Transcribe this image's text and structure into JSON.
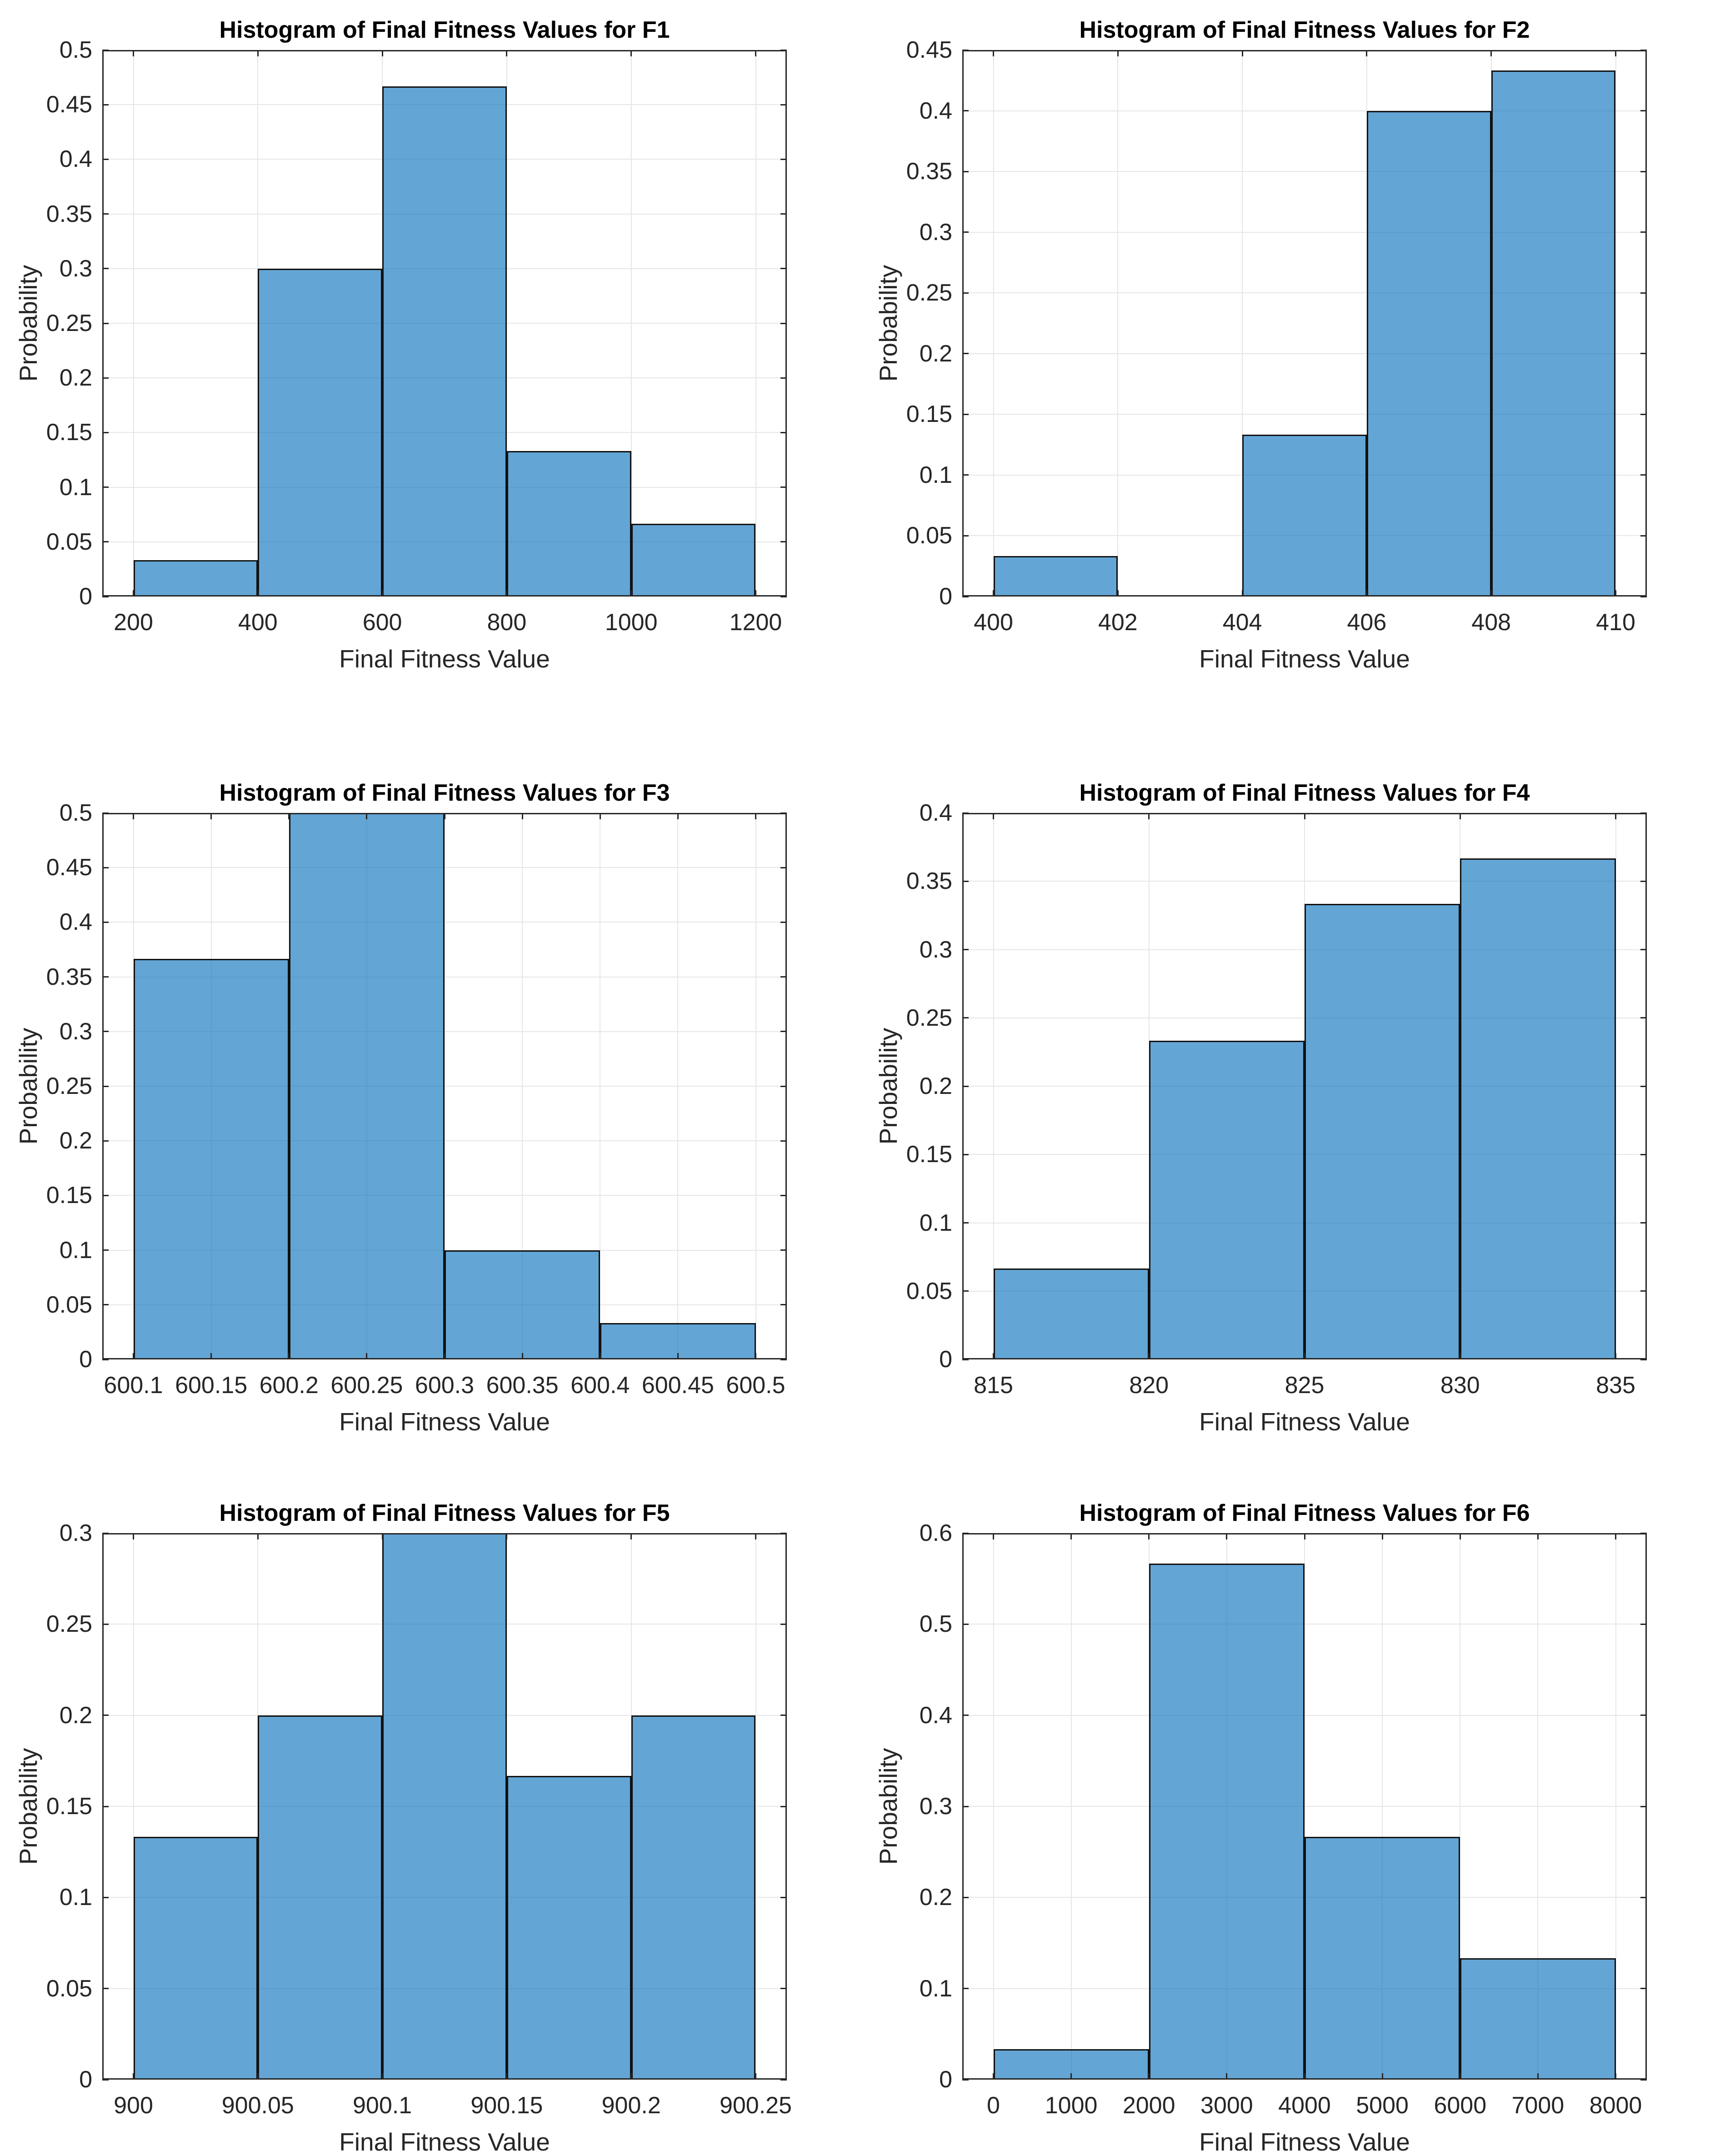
{
  "figure": {
    "background": "#ffffff"
  },
  "colors": {
    "bar_fill_rgba": "rgba(8,112,188,0.63)",
    "bar_edge": "#111111",
    "axis": "#262626",
    "grid": "#e6e6e6",
    "tick_text": "#262626",
    "title_text": "#000000"
  },
  "chart_data": [
    {
      "id": "F1",
      "type": "bar",
      "title": "Histogram of Final Fitness Values for F1",
      "xlabel": "Final Fitness Value",
      "ylabel": "Probability",
      "xlim": [
        150,
        1250
      ],
      "ylim": [
        0,
        0.5
      ],
      "grid": true,
      "x_ticks": [
        200,
        400,
        600,
        800,
        1000,
        1200
      ],
      "x_tick_labels": [
        "200",
        "400",
        "600",
        "800",
        "1000",
        "1200"
      ],
      "y_ticks": [
        0,
        0.05,
        0.1,
        0.15,
        0.2,
        0.25,
        0.3,
        0.35,
        0.4,
        0.45,
        0.5
      ],
      "y_tick_labels": [
        "0",
        "0.05",
        "0.1",
        "0.15",
        "0.2",
        "0.25",
        "0.3",
        "0.35",
        "0.4",
        "0.45",
        "0.5"
      ],
      "bins": [
        {
          "x0": 200,
          "x1": 400,
          "p": 0.0333
        },
        {
          "x0": 400,
          "x1": 600,
          "p": 0.3
        },
        {
          "x0": 600,
          "x1": 800,
          "p": 0.4667
        },
        {
          "x0": 800,
          "x1": 1000,
          "p": 0.1333
        },
        {
          "x0": 1000,
          "x1": 1200,
          "p": 0.0667
        }
      ]
    },
    {
      "id": "F2",
      "type": "bar",
      "title": "Histogram of Final Fitness Values for F2",
      "xlabel": "Final Fitness Value",
      "ylabel": "Probability",
      "xlim": [
        399.5,
        410.5
      ],
      "ylim": [
        0,
        0.45
      ],
      "grid": true,
      "x_ticks": [
        400,
        402,
        404,
        406,
        408,
        410
      ],
      "x_tick_labels": [
        "400",
        "402",
        "404",
        "406",
        "408",
        "410"
      ],
      "y_ticks": [
        0,
        0.05,
        0.1,
        0.15,
        0.2,
        0.25,
        0.3,
        0.35,
        0.4,
        0.45
      ],
      "y_tick_labels": [
        "0",
        "0.05",
        "0.1",
        "0.15",
        "0.2",
        "0.25",
        "0.3",
        "0.35",
        "0.4",
        "0.45"
      ],
      "bins": [
        {
          "x0": 400,
          "x1": 402,
          "p": 0.0333
        },
        {
          "x0": 402,
          "x1": 404,
          "p": 0
        },
        {
          "x0": 404,
          "x1": 406,
          "p": 0.1333
        },
        {
          "x0": 406,
          "x1": 408,
          "p": 0.4
        },
        {
          "x0": 408,
          "x1": 410,
          "p": 0.4333
        }
      ]
    },
    {
      "id": "F3",
      "type": "bar",
      "title": "Histogram of Final Fitness Values for F3",
      "xlabel": "Final Fitness Value",
      "ylabel": "Probability",
      "xlim": [
        600.08,
        600.52
      ],
      "ylim": [
        0,
        0.5
      ],
      "grid": true,
      "x_ticks": [
        600.1,
        600.15,
        600.2,
        600.25,
        600.3,
        600.35,
        600.4,
        600.45,
        600.5
      ],
      "x_tick_labels": [
        "600.1",
        "600.15",
        "600.2",
        "600.25",
        "600.3",
        "600.35",
        "600.4",
        "600.45",
        "600.5"
      ],
      "y_ticks": [
        0,
        0.05,
        0.1,
        0.15,
        0.2,
        0.25,
        0.3,
        0.35,
        0.4,
        0.45,
        0.5
      ],
      "y_tick_labels": [
        "0",
        "0.05",
        "0.1",
        "0.15",
        "0.2",
        "0.25",
        "0.3",
        "0.35",
        "0.4",
        "0.45",
        "0.5"
      ],
      "bins": [
        {
          "x0": 600.1,
          "x1": 600.2,
          "p": 0.3667
        },
        {
          "x0": 600.2,
          "x1": 600.3,
          "p": 0.5
        },
        {
          "x0": 600.3,
          "x1": 600.4,
          "p": 0.1
        },
        {
          "x0": 600.4,
          "x1": 600.5,
          "p": 0.0333
        }
      ]
    },
    {
      "id": "F4",
      "type": "bar",
      "title": "Histogram of Final Fitness Values for F4",
      "xlabel": "Final Fitness Value",
      "ylabel": "Probability",
      "xlim": [
        814,
        836
      ],
      "ylim": [
        0,
        0.4
      ],
      "grid": true,
      "x_ticks": [
        815,
        820,
        825,
        830,
        835
      ],
      "x_tick_labels": [
        "815",
        "820",
        "825",
        "830",
        "835"
      ],
      "y_ticks": [
        0,
        0.05,
        0.1,
        0.15,
        0.2,
        0.25,
        0.3,
        0.35,
        0.4
      ],
      "y_tick_labels": [
        "0",
        "0.05",
        "0.1",
        "0.15",
        "0.2",
        "0.25",
        "0.3",
        "0.35",
        "0.4"
      ],
      "bins": [
        {
          "x0": 815,
          "x1": 820,
          "p": 0.0667
        },
        {
          "x0": 820,
          "x1": 825,
          "p": 0.2333
        },
        {
          "x0": 825,
          "x1": 830,
          "p": 0.3333
        },
        {
          "x0": 830,
          "x1": 835,
          "p": 0.3667
        }
      ]
    },
    {
      "id": "F5",
      "type": "bar",
      "title": "Histogram of Final Fitness Values for F5",
      "xlabel": "Final Fitness Value",
      "ylabel": "Probability",
      "xlim": [
        899.9875,
        900.2625
      ],
      "ylim": [
        0,
        0.3
      ],
      "grid": true,
      "x_ticks": [
        900,
        900.05,
        900.1,
        900.15,
        900.2,
        900.25
      ],
      "x_tick_labels": [
        "900",
        "900.05",
        "900.1",
        "900.15",
        "900.2",
        "900.25"
      ],
      "y_ticks": [
        0,
        0.05,
        0.1,
        0.15,
        0.2,
        0.25,
        0.3
      ],
      "y_tick_labels": [
        "0",
        "0.05",
        "0.1",
        "0.15",
        "0.2",
        "0.25",
        "0.3"
      ],
      "bins": [
        {
          "x0": 900,
          "x1": 900.05,
          "p": 0.1333
        },
        {
          "x0": 900.05,
          "x1": 900.1,
          "p": 0.2
        },
        {
          "x0": 900.1,
          "x1": 900.15,
          "p": 0.3
        },
        {
          "x0": 900.15,
          "x1": 900.2,
          "p": 0.1667
        },
        {
          "x0": 900.2,
          "x1": 900.25,
          "p": 0.2
        }
      ]
    },
    {
      "id": "F6",
      "type": "bar",
      "title": "Histogram of Final Fitness Values for F6",
      "xlabel": "Final Fitness Value",
      "ylabel": "Probability",
      "xlim": [
        -400,
        8400
      ],
      "ylim": [
        0,
        0.6
      ],
      "grid": true,
      "x_ticks": [
        0,
        1000,
        2000,
        3000,
        4000,
        5000,
        6000,
        7000,
        8000
      ],
      "x_tick_labels": [
        "0",
        "1000",
        "2000",
        "3000",
        "4000",
        "5000",
        "6000",
        "7000",
        "8000"
      ],
      "y_ticks": [
        0,
        0.1,
        0.2,
        0.3,
        0.4,
        0.5,
        0.6
      ],
      "y_tick_labels": [
        "0",
        "0.1",
        "0.2",
        "0.3",
        "0.4",
        "0.5",
        "0.6"
      ],
      "bins": [
        {
          "x0": 0,
          "x1": 2000,
          "p": 0.0333
        },
        {
          "x0": 2000,
          "x1": 4000,
          "p": 0.5667
        },
        {
          "x0": 4000,
          "x1": 6000,
          "p": 0.2667
        },
        {
          "x0": 6000,
          "x1": 8000,
          "p": 0.1333
        }
      ]
    }
  ]
}
